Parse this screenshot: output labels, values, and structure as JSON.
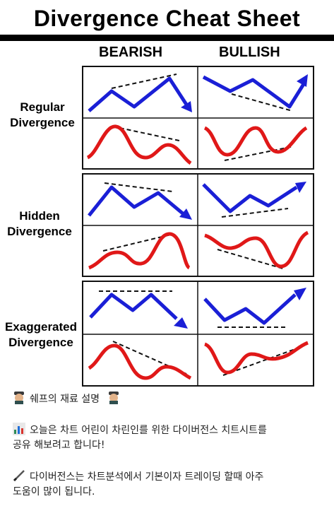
{
  "header": {
    "title": "Divergence Cheat Sheet"
  },
  "columns": {
    "bearish": "BEARISH",
    "bullish": "BULLISH"
  },
  "rows": [
    {
      "line1": "Regular",
      "line2": "Divergence"
    },
    {
      "line1": "Hidden",
      "line2": "Divergence"
    },
    {
      "line1": "Exaggerated",
      "line2": "Divergence"
    }
  ],
  "colors": {
    "price": "#1a1fd6",
    "indicator": "#e01818",
    "trendline": "#111111"
  },
  "post": {
    "line1": "쉐프의 재료 설명",
    "line2a": "오늘은 차트 어린이 차린인를 위한 다이버전스 치트시트를",
    "line2b": "공유 해보려고 합니다!",
    "line3a": "다이버전스는 차트분석에서 기본이자 트레이딩 할때 아주",
    "line3b": "도움이 많이 됩니다."
  }
}
